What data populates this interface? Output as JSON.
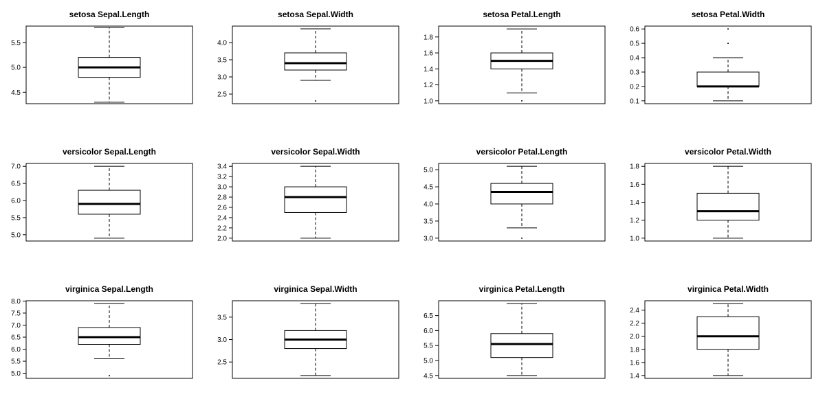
{
  "chart_data": [
    {
      "type": "box",
      "title": "setosa Sepal.Length",
      "ylim": [
        4.27,
        5.83
      ],
      "yticks": [
        "4.5",
        "5.0",
        "5.5"
      ],
      "stats": {
        "whisker_low": 4.3,
        "q1": 4.8,
        "median": 5.0,
        "q3": 5.2,
        "whisker_high": 5.8
      },
      "outliers": []
    },
    {
      "type": "box",
      "title": "setosa Sepal.Width",
      "ylim": [
        2.22,
        4.48
      ],
      "yticks": [
        "2.5",
        "3.0",
        "3.5",
        "4.0"
      ],
      "stats": {
        "whisker_low": 2.9,
        "q1": 3.2,
        "median": 3.4,
        "q3": 3.7,
        "whisker_high": 4.4
      },
      "outliers": [
        2.3
      ]
    },
    {
      "type": "box",
      "title": "setosa Petal.Length",
      "ylim": [
        0.964,
        1.936
      ],
      "yticks": [
        "1.0",
        "1.2",
        "1.4",
        "1.6",
        "1.8"
      ],
      "stats": {
        "whisker_low": 1.1,
        "q1": 1.4,
        "median": 1.5,
        "q3": 1.6,
        "whisker_high": 1.9
      },
      "outliers": [
        1.0
      ]
    },
    {
      "type": "box",
      "title": "setosa Petal.Width",
      "ylim": [
        0.08,
        0.62
      ],
      "yticks": [
        "0.1",
        "0.2",
        "0.3",
        "0.4",
        "0.5",
        "0.6"
      ],
      "stats": {
        "whisker_low": 0.1,
        "q1": 0.2,
        "median": 0.2,
        "q3": 0.3,
        "whisker_high": 0.4
      },
      "outliers": [
        0.5,
        0.6
      ]
    },
    {
      "type": "box",
      "title": "versicolor Sepal.Length",
      "ylim": [
        4.816,
        7.084
      ],
      "yticks": [
        "5.0",
        "5.5",
        "6.0",
        "6.5",
        "7.0"
      ],
      "stats": {
        "whisker_low": 4.9,
        "q1": 5.6,
        "median": 5.9,
        "q3": 6.3,
        "whisker_high": 7.0
      },
      "outliers": []
    },
    {
      "type": "box",
      "title": "versicolor Sepal.Width",
      "ylim": [
        1.944,
        3.456
      ],
      "yticks": [
        "2.0",
        "2.2",
        "2.4",
        "2.6",
        "2.8",
        "3.0",
        "3.2",
        "3.4"
      ],
      "stats": {
        "whisker_low": 2.0,
        "q1": 2.5,
        "median": 2.8,
        "q3": 3.0,
        "whisker_high": 3.4
      },
      "outliers": []
    },
    {
      "type": "box",
      "title": "versicolor Petal.Length",
      "ylim": [
        2.916,
        5.184
      ],
      "yticks": [
        "3.0",
        "3.5",
        "4.0",
        "4.5",
        "5.0"
      ],
      "stats": {
        "whisker_low": 3.3,
        "q1": 4.0,
        "median": 4.35,
        "q3": 4.6,
        "whisker_high": 5.1
      },
      "outliers": [
        3.0
      ]
    },
    {
      "type": "box",
      "title": "versicolor Petal.Width",
      "ylim": [
        0.968,
        1.832
      ],
      "yticks": [
        "1.0",
        "1.2",
        "1.4",
        "1.6",
        "1.8"
      ],
      "stats": {
        "whisker_low": 1.0,
        "q1": 1.2,
        "median": 1.3,
        "q3": 1.5,
        "whisker_high": 1.8
      },
      "outliers": []
    },
    {
      "type": "box",
      "title": "virginica Sepal.Length",
      "ylim": [
        4.788,
        8.012
      ],
      "yticks": [
        "5.0",
        "5.5",
        "6.0",
        "6.5",
        "7.0",
        "7.5",
        "8.0"
      ],
      "stats": {
        "whisker_low": 5.6,
        "q1": 6.2,
        "median": 6.5,
        "q3": 6.9,
        "whisker_high": 7.9
      },
      "outliers": [
        4.9
      ]
    },
    {
      "type": "box",
      "title": "virginica Sepal.Width",
      "ylim": [
        2.136,
        3.864
      ],
      "yticks": [
        "2.5",
        "3.0",
        "3.5"
      ],
      "stats": {
        "whisker_low": 2.2,
        "q1": 2.8,
        "median": 3.0,
        "q3": 3.2,
        "whisker_high": 3.8
      },
      "outliers": []
    },
    {
      "type": "box",
      "title": "virginica Petal.Length",
      "ylim": [
        4.404,
        6.996
      ],
      "yticks": [
        "4.5",
        "5.0",
        "5.5",
        "6.0",
        "6.5"
      ],
      "stats": {
        "whisker_low": 4.5,
        "q1": 5.1,
        "median": 5.55,
        "q3": 5.9,
        "whisker_high": 6.9
      },
      "outliers": []
    },
    {
      "type": "box",
      "title": "virginica Petal.Width",
      "ylim": [
        1.356,
        2.544
      ],
      "yticks": [
        "1.4",
        "1.6",
        "1.8",
        "2.0",
        "2.2",
        "2.4"
      ],
      "stats": {
        "whisker_low": 1.4,
        "q1": 1.8,
        "median": 2.0,
        "q3": 2.3,
        "whisker_high": 2.5
      },
      "outliers": []
    }
  ]
}
